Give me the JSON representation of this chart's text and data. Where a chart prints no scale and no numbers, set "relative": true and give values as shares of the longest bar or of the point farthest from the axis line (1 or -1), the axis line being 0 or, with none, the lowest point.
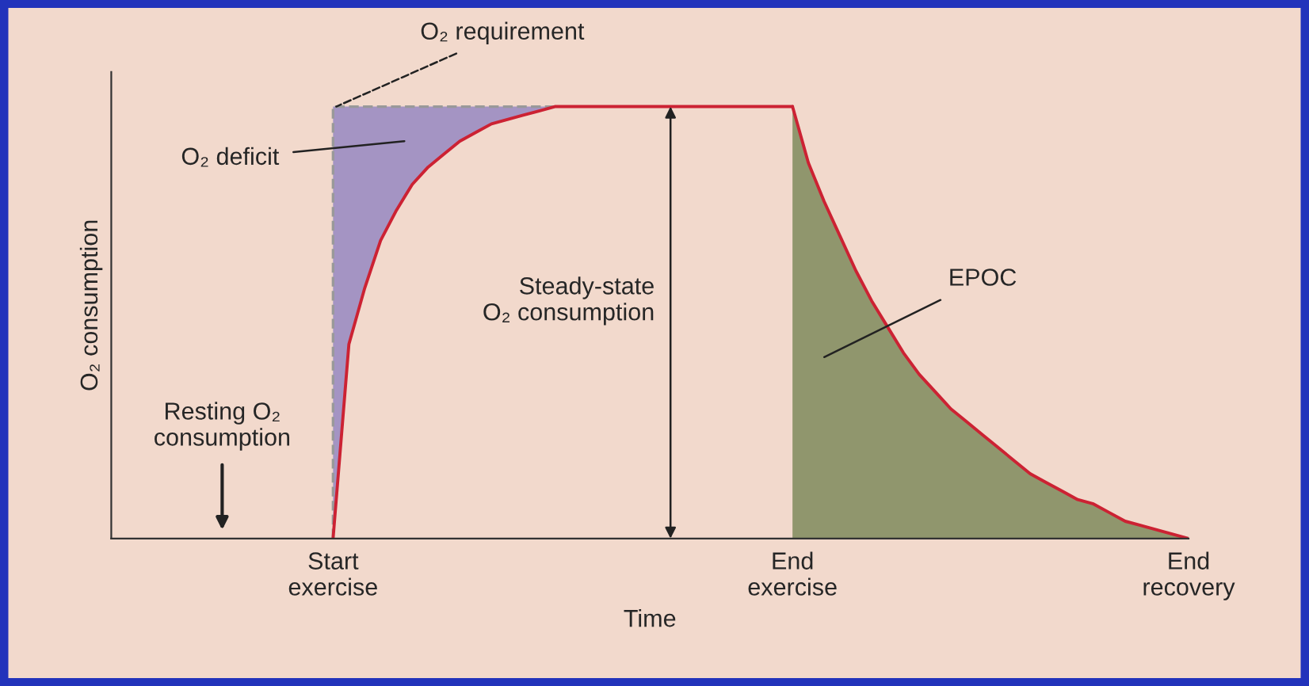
{
  "chart_data": {
    "type": "line",
    "relative": true,
    "xlabel": "Time",
    "ylabel": "O₂ consumption",
    "categories": [
      null,
      null,
      null,
      null,
      null,
      null,
      null,
      null,
      null,
      null,
      null,
      null,
      null,
      null,
      "Start\nexercise",
      null,
      null,
      null,
      null,
      null,
      null,
      null,
      null,
      null,
      null,
      null,
      null,
      null,
      null,
      null,
      null,
      null,
      null,
      null,
      null,
      null,
      null,
      null,
      null,
      null,
      null,
      null,
      null,
      "End\nexercise",
      null,
      null,
      null,
      null,
      null,
      null,
      null,
      null,
      null,
      null,
      null,
      null,
      null,
      null,
      null,
      null,
      null,
      null,
      null,
      null,
      null,
      null,
      null,
      null,
      "End\nrecovery"
    ],
    "series": [
      {
        "type": "step",
        "color": "#999999",
        "line_style": "dashed",
        "values": [
          null,
          null,
          null,
          null,
          null,
          null,
          null,
          null,
          null,
          null,
          null,
          null,
          null,
          null,
          0,
          1,
          1,
          1,
          1,
          1,
          1,
          1,
          1,
          1,
          1,
          1,
          1,
          1,
          1,
          null,
          null,
          null,
          null,
          null,
          null,
          null,
          null,
          null,
          null,
          null,
          null,
          null,
          null,
          null,
          null,
          null,
          null,
          null,
          null,
          null,
          null,
          null,
          null,
          null,
          null,
          null,
          null,
          null,
          null,
          null,
          null,
          null,
          null,
          null,
          null,
          null,
          null,
          null,
          null
        ]
      },
      {
        "color": "#cc2233",
        "values": [
          null,
          null,
          null,
          null,
          null,
          null,
          null,
          null,
          null,
          null,
          null,
          null,
          null,
          null,
          0,
          0.45,
          0.58,
          0.69,
          0.76,
          0.82,
          0.86,
          0.89,
          0.92,
          0.94,
          0.96,
          0.97,
          0.98,
          0.99,
          1,
          1,
          1,
          1,
          1,
          1,
          1,
          1,
          1,
          1,
          1,
          1,
          1,
          1,
          1,
          1,
          null,
          null,
          null,
          null,
          null,
          null,
          null,
          null,
          null,
          null,
          null,
          null,
          null,
          null,
          null,
          null,
          null,
          null,
          null,
          null,
          null,
          null,
          null,
          null,
          null
        ],
        "lower": [
          null,
          null,
          null,
          null,
          null,
          null,
          null,
          null,
          null,
          null,
          null,
          null,
          null,
          null,
          0,
          0.45,
          0.58,
          0.69,
          0.76,
          0.82,
          0.86,
          0.89,
          0.92,
          0.94,
          0.96,
          0.97,
          0.98,
          0.99,
          1,
          null,
          null,
          null,
          null,
          null,
          null,
          null,
          null,
          null,
          null,
          null,
          null,
          null,
          null,
          null,
          null,
          null,
          null,
          null,
          null,
          null,
          null,
          null,
          null,
          null,
          null,
          null,
          null,
          null,
          null,
          null,
          null,
          null,
          null,
          null,
          null,
          null,
          null,
          null,
          null
        ],
        "upper": [
          null,
          null,
          null,
          null,
          null,
          null,
          null,
          null,
          null,
          null,
          null,
          null,
          null,
          null,
          1,
          1,
          1,
          1,
          1,
          1,
          1,
          1,
          1,
          1,
          1,
          1,
          1,
          1,
          1,
          null,
          null,
          null,
          null,
          null,
          null,
          null,
          null,
          null,
          null,
          null,
          null,
          null,
          null,
          null,
          null,
          null,
          null,
          null,
          null,
          null,
          null,
          null,
          null,
          null,
          null,
          null,
          null,
          null,
          null,
          null,
          null,
          null,
          null,
          null,
          null,
          null,
          null,
          null,
          null
        ]
      },
      {
        "type": "area",
        "color": "#7f8a5c",
        "values": [
          null,
          null,
          null,
          null,
          null,
          null,
          null,
          null,
          null,
          null,
          null,
          null,
          null,
          null,
          null,
          null,
          null,
          null,
          null,
          null,
          null,
          null,
          null,
          null,
          null,
          null,
          null,
          null,
          null,
          null,
          null,
          null,
          null,
          null,
          null,
          null,
          null,
          null,
          null,
          null,
          null,
          null,
          null,
          1,
          0.87,
          0.78,
          0.7,
          0.62,
          0.55,
          0.49,
          0.43,
          0.38,
          0.34,
          0.3,
          0.27,
          0.24,
          0.21,
          0.18,
          0.15,
          0.13,
          0.11,
          0.09,
          0.08,
          0.06,
          0.04,
          0.03,
          0.02,
          0.01,
          0
        ]
      }
    ],
    "annotations": [
      "O₂ requirement",
      "O₂ deficit",
      "Steady-state\nO₂ consumption",
      "EPOC",
      "Resting O₂\nconsumption"
    ],
    "grid": false
  }
}
